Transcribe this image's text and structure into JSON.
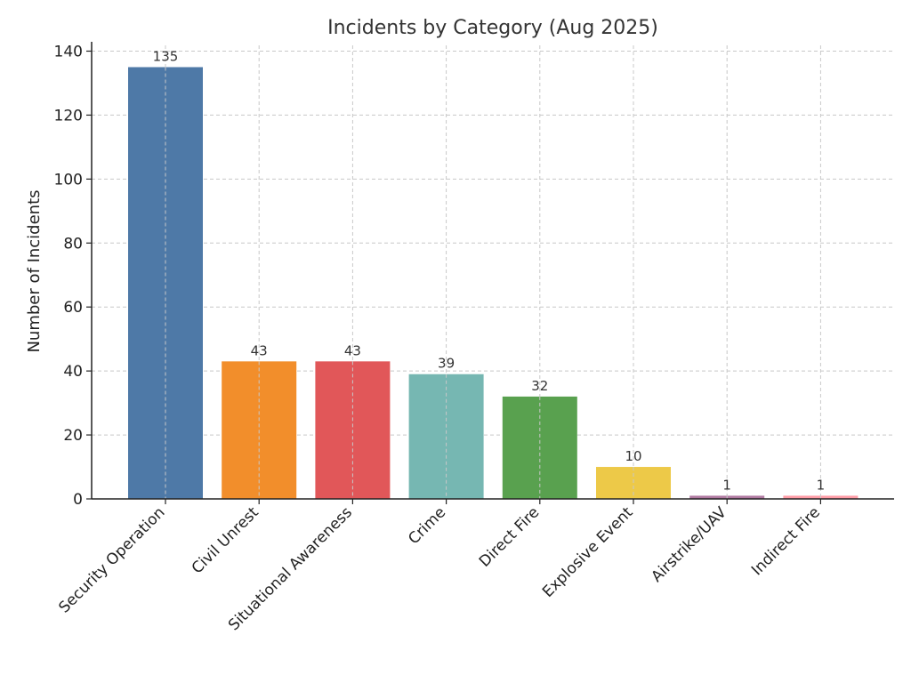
{
  "chart_data": {
    "type": "bar",
    "title": "Incidents by Category (Aug 2025)",
    "xlabel": "",
    "ylabel": "Number of Incidents",
    "ylim": [
      0,
      140
    ],
    "yticks": [
      0,
      20,
      40,
      60,
      80,
      100,
      120,
      140
    ],
    "grid": true,
    "categories": [
      "Security Operation",
      "Civil Unrest",
      "Situational Awareness",
      "Crime",
      "Direct Fire",
      "Explosive Event",
      "Airstrike/UAV",
      "Indirect Fire"
    ],
    "values": [
      135,
      43,
      43,
      39,
      32,
      10,
      1,
      1
    ],
    "colors": [
      "#4e79a7",
      "#f28e2b",
      "#e15759",
      "#76b7b2",
      "#59a14f",
      "#edc948",
      "#b07aa1",
      "#ff9da7"
    ],
    "data_labels": [
      "135",
      "43",
      "43",
      "39",
      "32",
      "10",
      "1",
      "1"
    ]
  }
}
